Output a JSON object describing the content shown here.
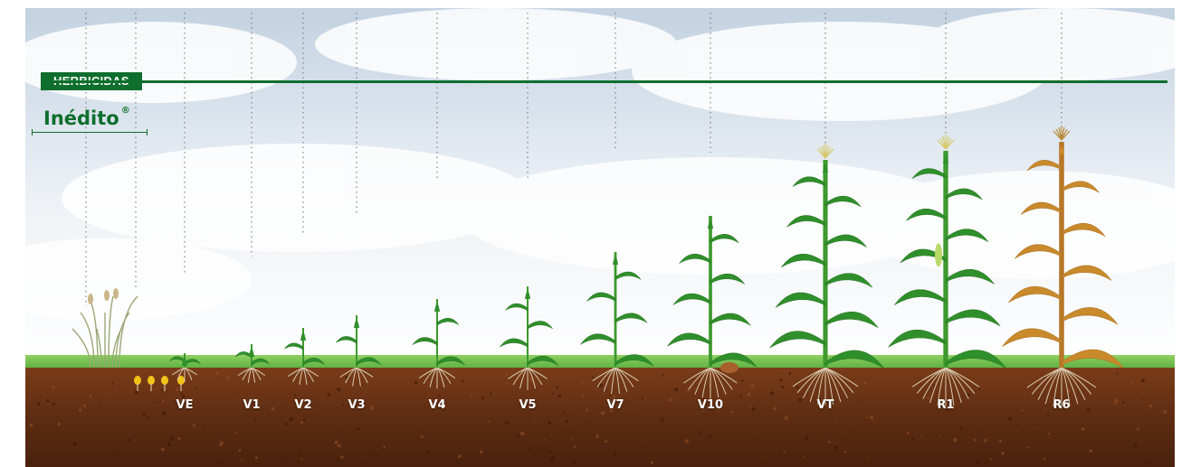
{
  "header": {
    "category": "HERBICIDAS",
    "brand": "Inédito",
    "brand_mark": "®"
  },
  "stages": [
    {
      "label": "VE",
      "kind": "seedling"
    },
    {
      "label": "V1",
      "kind": "seedling"
    },
    {
      "label": "V2",
      "kind": "young"
    },
    {
      "label": "V3",
      "kind": "young"
    },
    {
      "label": "V4",
      "kind": "young"
    },
    {
      "label": "V5",
      "kind": "young"
    },
    {
      "label": "V7",
      "kind": "vegetative"
    },
    {
      "label": "V10",
      "kind": "vegetative"
    },
    {
      "label": "VT",
      "kind": "tassel"
    },
    {
      "label": "R1",
      "kind": "silk"
    },
    {
      "label": "R6",
      "kind": "mature"
    }
  ],
  "colors": {
    "brand_green": "#0e6e2d",
    "sky_top": "#c9d6e3",
    "sky_bottom": "#ffffff",
    "grass": "#6cc24a",
    "soil": "#6b3416",
    "leaf_green": "#2f8f2a",
    "mature_gold": "#c98a2c"
  }
}
